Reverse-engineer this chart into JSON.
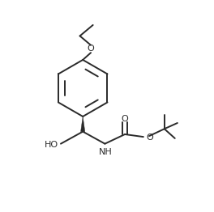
{
  "figsize": [
    2.64,
    2.62
  ],
  "dpi": 100,
  "bg_color": "#ffffff",
  "line_color": "#2a2a2a",
  "line_width": 1.4,
  "font_size": 8.0,
  "xlim": [
    0,
    10
  ],
  "ylim": [
    0,
    10
  ]
}
